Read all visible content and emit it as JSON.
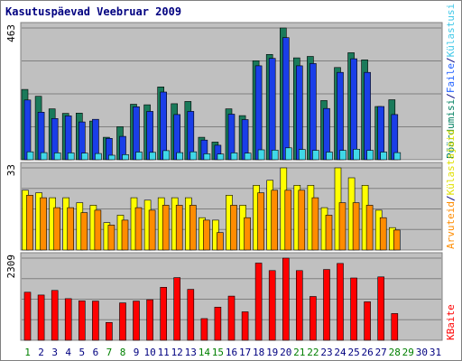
{
  "chart_data": {
    "type": "bar",
    "title": "Kasutuspäevad Veebruar 2009",
    "x": [
      "1",
      "2",
      "3",
      "4",
      "5",
      "6",
      "7",
      "8",
      "9",
      "10",
      "11",
      "12",
      "13",
      "14",
      "15",
      "16",
      "17",
      "18",
      "19",
      "20",
      "21",
      "22",
      "23",
      "24",
      "25",
      "26",
      "27",
      "28",
      "29",
      "30",
      "31"
    ],
    "day_colors": [
      "#008000",
      "#000080",
      "#000080",
      "#000080",
      "#000080",
      "#000080",
      "#008000",
      "#008000",
      "#000080",
      "#000080",
      "#000080",
      "#000080",
      "#000080",
      "#008000",
      "#008000",
      "#000080",
      "#000080",
      "#000080",
      "#000080",
      "#000080",
      "#008000",
      "#008000",
      "#000080",
      "#000080",
      "#000080",
      "#000080",
      "#000080",
      "#008000",
      "#008000",
      "#000080",
      "#000080"
    ],
    "panels": [
      {
        "max_label": "463",
        "ymax": 463,
        "series": [
          {
            "name": "Pöördumisi",
            "color": "#1a7a5a",
            "values": [
              247,
              223,
              179,
              163,
              164,
              136,
              79,
              116,
              195,
              193,
              256,
              197,
              205,
              79,
              62,
              179,
              155,
              348,
              370,
              463,
              358,
              363,
              208,
              324,
              376,
              351,
              187,
              211,
              0,
              0,
              0
            ]
          },
          {
            "name": "Faile",
            "color": "#1a3ee8",
            "values": [
              210,
              167,
              145,
              154,
              133,
              142,
              75,
              82,
              186,
              170,
              238,
              159,
              170,
              69,
              51,
              160,
              141,
              330,
              356,
              429,
              330,
              338,
              180,
              307,
              355,
              307,
              187,
              159,
              0,
              0,
              0
            ]
          },
          {
            "name": "Külastusi",
            "color": "#40d8e8",
            "values": [
              28,
              25,
              24,
              24,
              23,
              22,
              16,
              18,
              27,
              26,
              32,
              25,
              28,
              21,
              20,
              24,
              23,
              35,
              34,
              42,
              36,
              33,
              27,
              33,
              37,
              33,
              27,
              25,
              0,
              0,
              0
            ]
          }
        ]
      },
      {
        "max_label": "33",
        "ymax": 33,
        "series": [
          {
            "name": "Külastajaid",
            "color": "#ffff00",
            "values": [
              24,
              23,
              21,
              21,
              19,
              18,
              11,
              14,
              21,
              20,
              21,
              21,
              21,
              13,
              12,
              22,
              18,
              26,
              28,
              33,
              26,
              26,
              17,
              33,
              29,
              26,
              16,
              9,
              0,
              0,
              0
            ]
          },
          {
            "name": "Arvuteid",
            "color": "#ff8c00",
            "values": [
              22,
              21,
              17,
              17,
              15,
              16,
              10,
              12,
              17,
              16,
              18,
              18,
              18,
              12,
              7,
              18,
              13,
              23,
              24,
              24,
              24,
              21,
              14,
              19,
              19,
              18,
              13,
              8,
              0,
              0,
              0
            ]
          }
        ]
      },
      {
        "max_label": "2309",
        "ymax": 2309,
        "series": [
          {
            "name": "KBaite",
            "color": "#ff0000",
            "values": [
              1350,
              1270,
              1400,
              1170,
              1110,
              1100,
              500,
              1050,
              1100,
              1140,
              1490,
              1760,
              1430,
              610,
              930,
              1240,
              800,
              2170,
              1960,
              2309,
              1960,
              1230,
              1990,
              2160,
              1750,
              1080,
              1780,
              750,
              0,
              0,
              0
            ]
          }
        ]
      }
    ],
    "legend_right": [
      {
        "label": "Pöördumisi",
        "color": "#008060"
      },
      {
        "label": "/",
        "color": "#000080"
      },
      {
        "label": "Faile",
        "color": "#2060ff"
      },
      {
        "label": "/",
        "color": "#000080"
      },
      {
        "label": "Külastusi",
        "color": "#40c8e8"
      }
    ],
    "legend_mid": [
      {
        "label": "Arvuteid",
        "color": "#ff8c00"
      },
      {
        "label": "/",
        "color": "#000080"
      },
      {
        "label": "Külastajaid",
        "color": "#e0e000"
      }
    ],
    "legend_bottom": [
      {
        "label": "KBaite",
        "color": "#ff0000"
      }
    ],
    "grid": true,
    "legend_position": "right"
  }
}
